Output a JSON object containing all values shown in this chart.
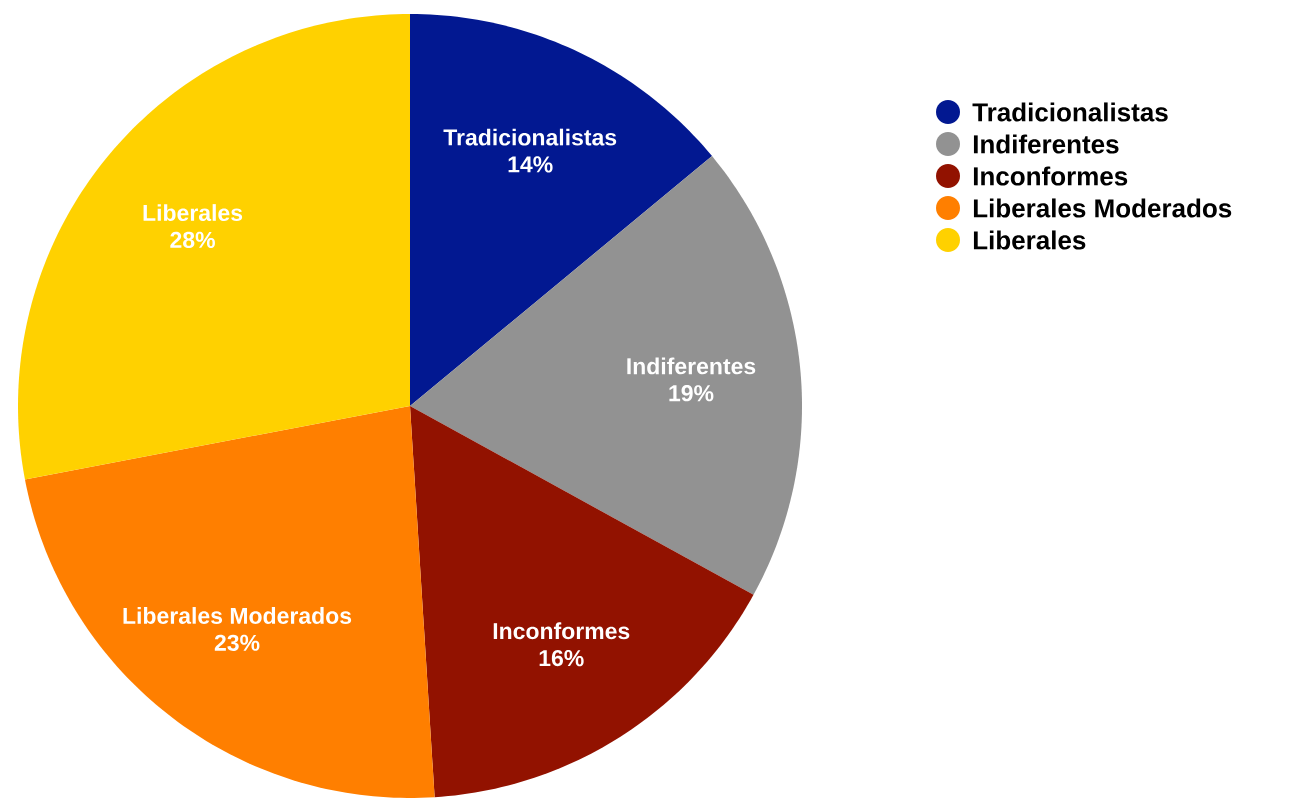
{
  "chart_data": {
    "type": "pie",
    "categories": [
      "Tradicionalistas",
      "Indiferentes",
      "Inconformes",
      "Liberales Moderados",
      "Liberales"
    ],
    "values": [
      14,
      19,
      16,
      23,
      28
    ],
    "colors": [
      "#021891",
      "#929292",
      "#921200",
      "#ff7f00",
      "#ffd100"
    ],
    "value_labels": [
      "14%",
      "19%",
      "16%",
      "23%",
      "28%"
    ],
    "legend": "top right"
  }
}
